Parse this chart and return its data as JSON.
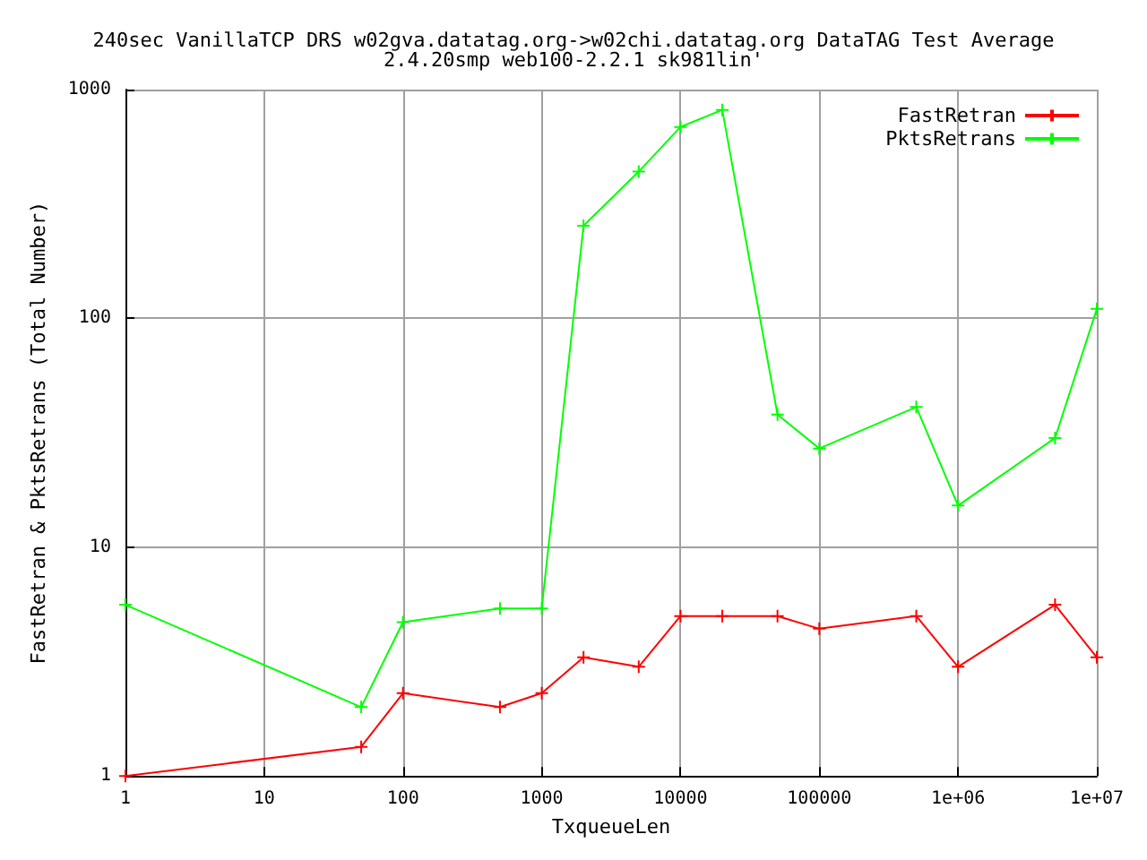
{
  "chart_data": {
    "type": "line",
    "title": "240sec VanillaTCP DRS w02gva.datatag.org->w02chi.datatag.org DataTAG Test Average",
    "subtitle": "2.4.20smp web100-2.2.1 sk981lin'",
    "xlabel": "TxqueueLen",
    "ylabel": "FastRetran & PktsRetrans (Total Number)",
    "x": [
      1,
      50,
      100,
      500,
      1000,
      2000,
      5000,
      10000,
      20000,
      50000,
      100000,
      500000,
      1000000,
      5000000,
      10000000
    ],
    "series": [
      {
        "name": "FastRetran",
        "color": "#ff0000",
        "values": [
          1,
          1.34,
          2.3,
          2,
          2.3,
          3.3,
          3,
          5,
          5,
          5,
          4.4,
          5,
          3,
          5.6,
          3.3
        ]
      },
      {
        "name": "PktsRetrans",
        "color": "#00ff00",
        "values": [
          5.6,
          2,
          4.7,
          5.4,
          5.4,
          254,
          438,
          687,
          815,
          38,
          27,
          41,
          15.2,
          30,
          110
        ]
      }
    ],
    "xlim": [
      1,
      10000000
    ],
    "ylim": [
      1,
      1000
    ],
    "xticks": [
      1,
      10,
      100,
      1000,
      10000,
      100000,
      {
        "value": 1000000,
        "label": "1e+06"
      },
      {
        "value": 10000000,
        "label": "1e+07"
      }
    ],
    "yticks": [
      1,
      10,
      100,
      1000
    ],
    "log": "xy",
    "grid": true,
    "legend": "top right",
    "marker": "cross",
    "line_style": "solid"
  }
}
